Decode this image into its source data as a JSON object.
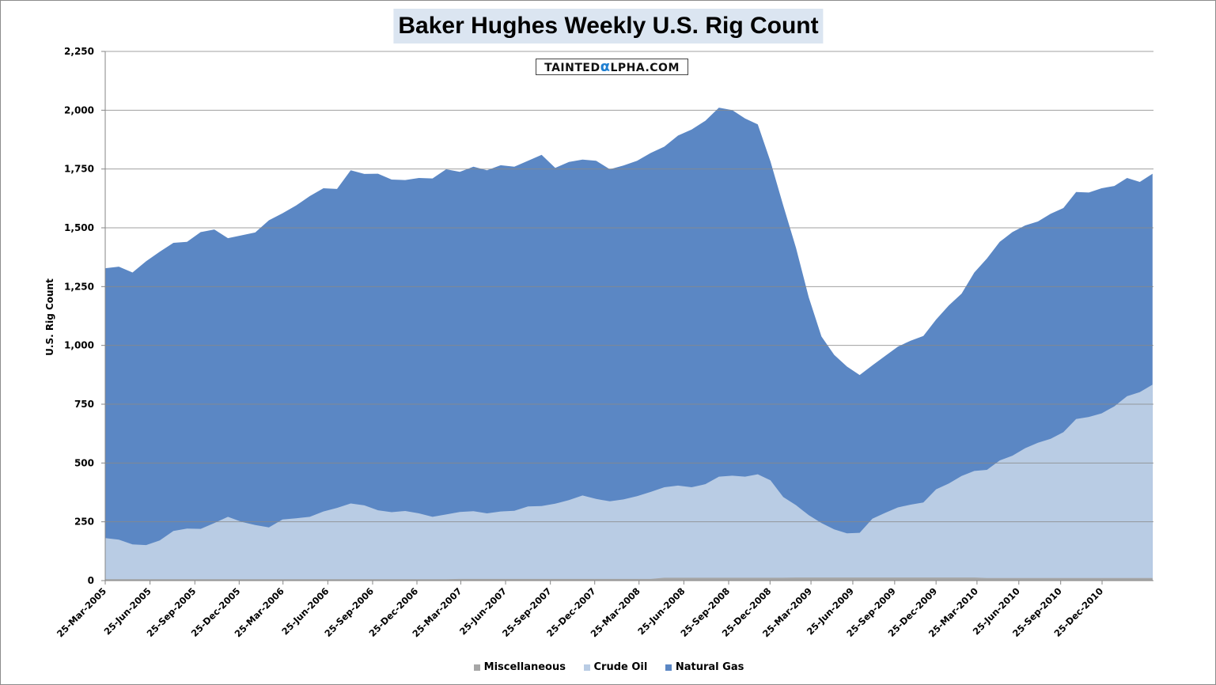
{
  "chart_data": {
    "type": "area",
    "stacked": true,
    "title": "Baker Hughes Weekly U.S. Rig Count",
    "watermark": "TAINTEDαLPHA.COM",
    "xlabel": "",
    "ylabel": "U.S. Rig Count",
    "ylim": [
      0,
      2250
    ],
    "y_ticks": [
      "0",
      "250",
      "500",
      "750",
      "1,000",
      "1,250",
      "1,500",
      "1,750",
      "2,000",
      "2,250"
    ],
    "y_tick_values": [
      0,
      250,
      500,
      750,
      1000,
      1250,
      1500,
      1750,
      2000,
      2250
    ],
    "x_tick_labels": [
      "25-Mar-2005",
      "25-Jun-2005",
      "25-Sep-2005",
      "25-Dec-2005",
      "25-Mar-2006",
      "25-Jun-2006",
      "25-Sep-2006",
      "25-Dec-2006",
      "25-Mar-2007",
      "25-Jun-2007",
      "25-Sep-2007",
      "25-Dec-2007",
      "25-Mar-2008",
      "25-Jun-2008",
      "25-Sep-2008",
      "25-Dec-2008",
      "25-Mar-2009",
      "25-Jun-2009",
      "25-Sep-2009",
      "25-Dec-2009",
      "25-Mar-2010",
      "25-Jun-2010",
      "25-Sep-2010",
      "25-Dec-2010"
    ],
    "grid": "horizontal",
    "legend_placement": "bottom",
    "x": [
      "2005-03-25",
      "2005-04-22",
      "2005-05-20",
      "2005-06-17",
      "2005-07-15",
      "2005-08-12",
      "2005-09-09",
      "2005-10-07",
      "2005-11-04",
      "2005-12-02",
      "2005-12-30",
      "2006-01-27",
      "2006-02-24",
      "2006-03-24",
      "2006-04-21",
      "2006-05-19",
      "2006-06-16",
      "2006-07-14",
      "2006-08-11",
      "2006-09-08",
      "2006-10-06",
      "2006-11-03",
      "2006-12-01",
      "2006-12-29",
      "2007-01-26",
      "2007-02-23",
      "2007-03-23",
      "2007-04-20",
      "2007-05-18",
      "2007-06-15",
      "2007-07-13",
      "2007-08-10",
      "2007-09-07",
      "2007-10-05",
      "2007-11-02",
      "2007-11-30",
      "2007-12-28",
      "2008-01-25",
      "2008-02-22",
      "2008-03-21",
      "2008-04-18",
      "2008-05-16",
      "2008-06-13",
      "2008-07-11",
      "2008-08-08",
      "2008-09-05",
      "2008-10-03",
      "2008-10-31",
      "2008-11-28",
      "2008-12-26",
      "2009-01-23",
      "2009-02-20",
      "2009-03-20",
      "2009-04-17",
      "2009-05-15",
      "2009-06-12",
      "2009-07-10",
      "2009-08-07",
      "2009-09-04",
      "2009-10-02",
      "2009-10-30",
      "2009-11-27",
      "2009-12-25",
      "2010-01-22",
      "2010-02-19",
      "2010-03-19",
      "2010-04-16",
      "2010-05-14",
      "2010-06-11",
      "2010-07-09",
      "2010-08-06",
      "2010-09-03",
      "2010-10-01",
      "2010-10-29",
      "2010-11-26",
      "2010-12-24",
      "2011-01-21",
      "2011-02-18",
      "2011-03-18",
      "2011-04-15"
    ],
    "series": [
      {
        "name": "Miscellaneous",
        "color": "#a6a6a6",
        "values": [
          6,
          6,
          6,
          6,
          6,
          6,
          6,
          6,
          6,
          6,
          6,
          6,
          6,
          6,
          6,
          6,
          6,
          6,
          6,
          6,
          6,
          6,
          6,
          6,
          6,
          6,
          7,
          7,
          7,
          7,
          7,
          7,
          7,
          7,
          7,
          7,
          7,
          7,
          7,
          7,
          7,
          12,
          12,
          12,
          12,
          12,
          12,
          12,
          12,
          12,
          12,
          13,
          13,
          13,
          13,
          13,
          13,
          13,
          13,
          13,
          13,
          13,
          13,
          13,
          13,
          13,
          11,
          11,
          11,
          11,
          11,
          11,
          11,
          11,
          11,
          11,
          11,
          11,
          11,
          11
        ]
      },
      {
        "name": "Crude Oil",
        "color": "#b9cce4",
        "values": [
          175,
          168,
          148,
          145,
          165,
          205,
          215,
          214,
          239,
          265,
          244,
          230,
          220,
          254,
          259,
          265,
          288,
          303,
          322,
          314,
          293,
          285,
          290,
          280,
          265,
          275,
          285,
          288,
          279,
          287,
          290,
          308,
          310,
          320,
          335,
          355,
          340,
          330,
          338,
          352,
          370,
          385,
          392,
          385,
          398,
          430,
          434,
          430,
          440,
          414,
          343,
          308,
          265,
          232,
          205,
          188,
          190,
          250,
          275,
          298,
          310,
          319,
          375,
          400,
          432,
          453,
          460,
          500,
          520,
          552,
          575,
          592,
          620,
          676,
          685,
          700,
          730,
          773,
          790,
          822
        ]
      },
      {
        "name": "Natural Gas",
        "color": "#5b87c4",
        "values": [
          1147,
          1161,
          1156,
          1207,
          1227,
          1225,
          1219,
          1262,
          1248,
          1185,
          1218,
          1244,
          1306,
          1302,
          1330,
          1364,
          1374,
          1356,
          1417,
          1409,
          1431,
          1414,
          1407,
          1426,
          1439,
          1468,
          1446,
          1465,
          1459,
          1472,
          1463,
          1470,
          1493,
          1428,
          1438,
          1428,
          1438,
          1412,
          1420,
          1426,
          1441,
          1448,
          1488,
          1521,
          1545,
          1569,
          1554,
          1523,
          1488,
          1356,
          1240,
          1094,
          927,
          793,
          742,
          709,
          671,
          652,
          667,
          684,
          697,
          708,
          722,
          757,
          775,
          844,
          899,
          929,
          951,
          947,
          941,
          957,
          953,
          965,
          954,
          957,
          937,
          928,
          894,
          897
        ]
      }
    ]
  }
}
